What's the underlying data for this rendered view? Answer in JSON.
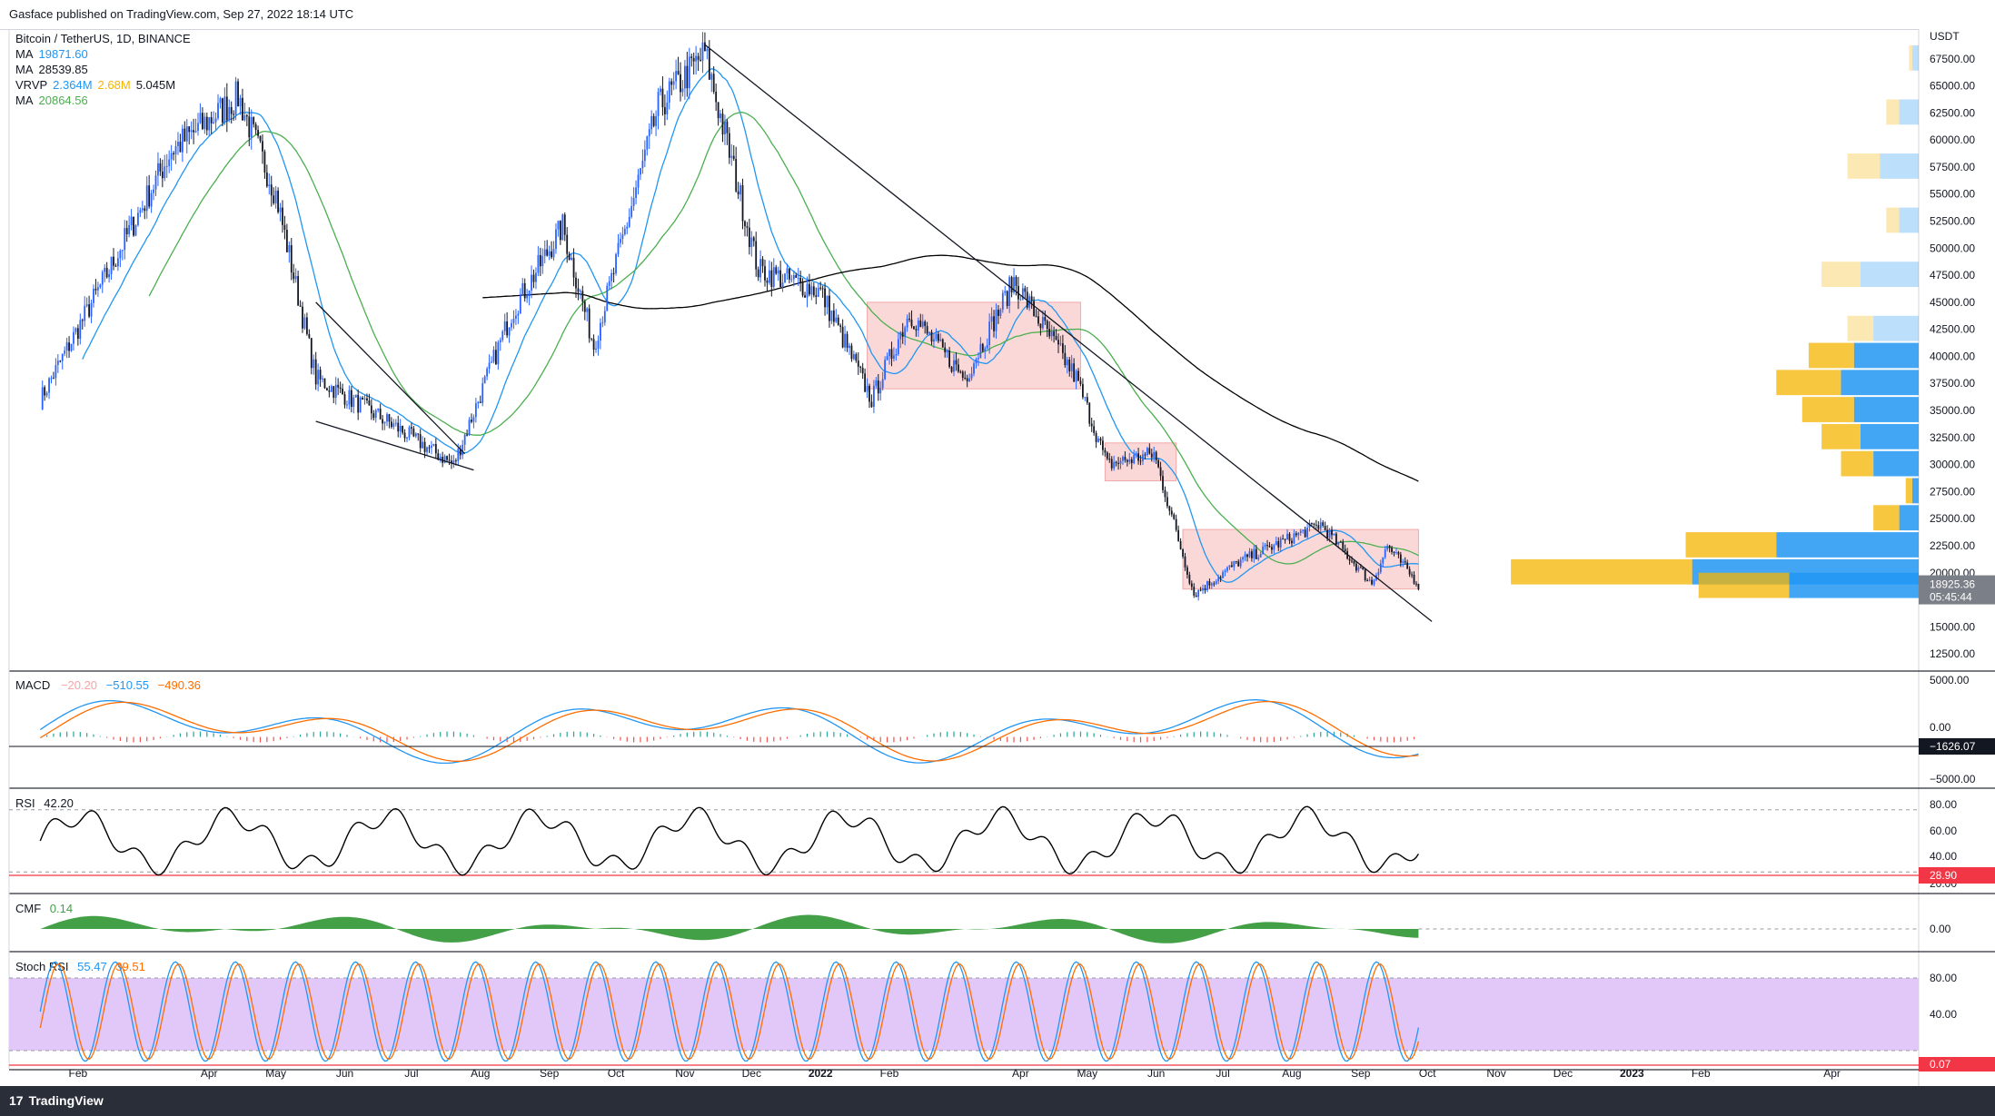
{
  "header": {
    "published": "Gasface published on TradingView.com, Sep 27, 2022 18:14 UTC"
  },
  "legend": {
    "symbol": "Bitcoin / TetherUS, 1D, BINANCE",
    "ma1_label": "MA",
    "ma1_value": "19871.60",
    "ma2_label": "MA",
    "ma2_value": "28539.85",
    "vrvp_label": "VRVP",
    "vrvp_up": "2.364M",
    "vrvp_down": "2.68M",
    "vrvp_total": "5.045M",
    "ma3_label": "MA",
    "ma3_value": "20864.56"
  },
  "panes": {
    "macd": {
      "label": "MACD",
      "v1": "−20.20",
      "v2": "−510.55",
      "v3": "−490.36",
      "badge": "−1626.07"
    },
    "rsi": {
      "label": "RSI",
      "value": "42.20",
      "badge": "28.90"
    },
    "cmf": {
      "label": "CMF",
      "value": "0.14"
    },
    "stoch": {
      "label": "Stoch RSI",
      "k": "55.47",
      "d": "39.51",
      "badge": "0.07"
    }
  },
  "price_axis": {
    "currency": "USDT",
    "ticks": [
      "67500.00",
      "65000.00",
      "62500.00",
      "60000.00",
      "57500.00",
      "55000.00",
      "52500.00",
      "50000.00",
      "47500.00",
      "45000.00",
      "42500.00",
      "40000.00",
      "37500.00",
      "35000.00",
      "32500.00",
      "30000.00",
      "27500.00",
      "25000.00",
      "22500.00",
      "20000.00",
      "17500.00",
      "15000.00",
      "12500.00"
    ],
    "last_price": "18925.36",
    "countdown": "05:45:44",
    "macd_ticks": [
      "5000.00",
      "0.00",
      "−5000.00"
    ],
    "rsi_ticks": [
      "80.00",
      "60.00",
      "40.00",
      "20.00"
    ],
    "cmf_ticks": [
      "0.00"
    ],
    "stoch_ticks": [
      "80.00",
      "40.00"
    ]
  },
  "time_axis": {
    "ticks": [
      "Feb",
      "Apr",
      "May",
      "Jun",
      "Jul",
      "Aug",
      "Sep",
      "Oct",
      "Nov",
      "Dec",
      "2022",
      "Feb",
      "Apr",
      "May",
      "Jun",
      "Jul",
      "Aug",
      "Sep",
      "Oct",
      "Nov",
      "Dec",
      "2023",
      "Feb",
      "Apr"
    ]
  },
  "colors": {
    "up": "#2962ff",
    "down": "#131722",
    "ma_fast": "#2196f3",
    "ma_mid": "#4caf50",
    "ma_slow": "#000000",
    "box": "#f8c8c8",
    "vrvp_up": "#2196f3",
    "vrvp_down": "#f5b400",
    "macd_line": "#2196f3",
    "signal_line": "#ff6d00",
    "rsi_line": "#000000",
    "cmf_fill": "#43a047",
    "stoch_fill": "#e1c8f8",
    "red_line": "#f23645"
  },
  "chart_data": {
    "type": "line",
    "title": "Bitcoin / TetherUS, 1D, BINANCE",
    "xlabel": "",
    "ylabel": "USDT",
    "ylim": [
      11000,
      70000
    ],
    "x": [
      "2021-01-15",
      "2021-02-15",
      "2021-03-15",
      "2021-04-14",
      "2021-05-01",
      "2021-05-19",
      "2021-06-20",
      "2021-07-20",
      "2021-08-15",
      "2021-09-07",
      "2021-09-21",
      "2021-10-20",
      "2021-11-10",
      "2021-12-04",
      "2022-01-01",
      "2022-01-24",
      "2022-02-10",
      "2022-03-07",
      "2022-03-29",
      "2022-04-26",
      "2022-05-10",
      "2022-05-31",
      "2022-06-18",
      "2022-07-08",
      "2022-08-14",
      "2022-09-06",
      "2022-09-13",
      "2022-09-27"
    ],
    "series": [
      {
        "values": [
          36000,
          48000,
          59000,
          64000,
          55000,
          38000,
          34000,
          30000,
          44000,
          52000,
          41000,
          63000,
          68000,
          48000,
          46000,
          36000,
          44000,
          38000,
          47000,
          38000,
          30000,
          31000,
          18000,
          21000,
          24500,
          19000,
          22500,
          18925
        ]
      }
    ],
    "moving_averages": [
      {
        "name": "MA",
        "value": 19871.6
      },
      {
        "name": "MA",
        "value": 28539.85
      },
      {
        "name": "MA",
        "value": 20864.56
      }
    ],
    "vrvp": [
      {
        "price": 67500,
        "up": 0.1,
        "down": 0.05
      },
      {
        "price": 62500,
        "up": 0.3,
        "down": 0.2
      },
      {
        "price": 57500,
        "up": 0.6,
        "down": 0.5
      },
      {
        "price": 52500,
        "up": 0.3,
        "down": 0.2
      },
      {
        "price": 47500,
        "up": 0.9,
        "down": 0.6
      },
      {
        "price": 42500,
        "up": 0.7,
        "down": 0.4
      },
      {
        "price": 40000,
        "up": 1.0,
        "down": 0.7
      },
      {
        "price": 37500,
        "up": 1.2,
        "down": 1.0
      },
      {
        "price": 35000,
        "up": 1.0,
        "down": 0.8
      },
      {
        "price": 32500,
        "up": 0.9,
        "down": 0.6
      },
      {
        "price": 30000,
        "up": 0.7,
        "down": 0.5
      },
      {
        "price": 27500,
        "up": 0.1,
        "down": 0.1
      },
      {
        "price": 25000,
        "up": 0.3,
        "down": 0.4
      },
      {
        "price": 22500,
        "up": 2.2,
        "down": 1.4
      },
      {
        "price": 20000,
        "up": 3.5,
        "down": 2.8
      },
      {
        "price": 18750,
        "up": 2.0,
        "down": 1.4
      }
    ],
    "consolidation_ranges": [
      {
        "from": "2022-01-22",
        "to": "2022-04-28",
        "low": 37000,
        "high": 45000
      },
      {
        "from": "2022-05-09",
        "to": "2022-06-10",
        "low": 28500,
        "high": 32000
      },
      {
        "from": "2022-06-13",
        "to": "2022-09-27",
        "low": 18500,
        "high": 24000
      }
    ]
  }
}
